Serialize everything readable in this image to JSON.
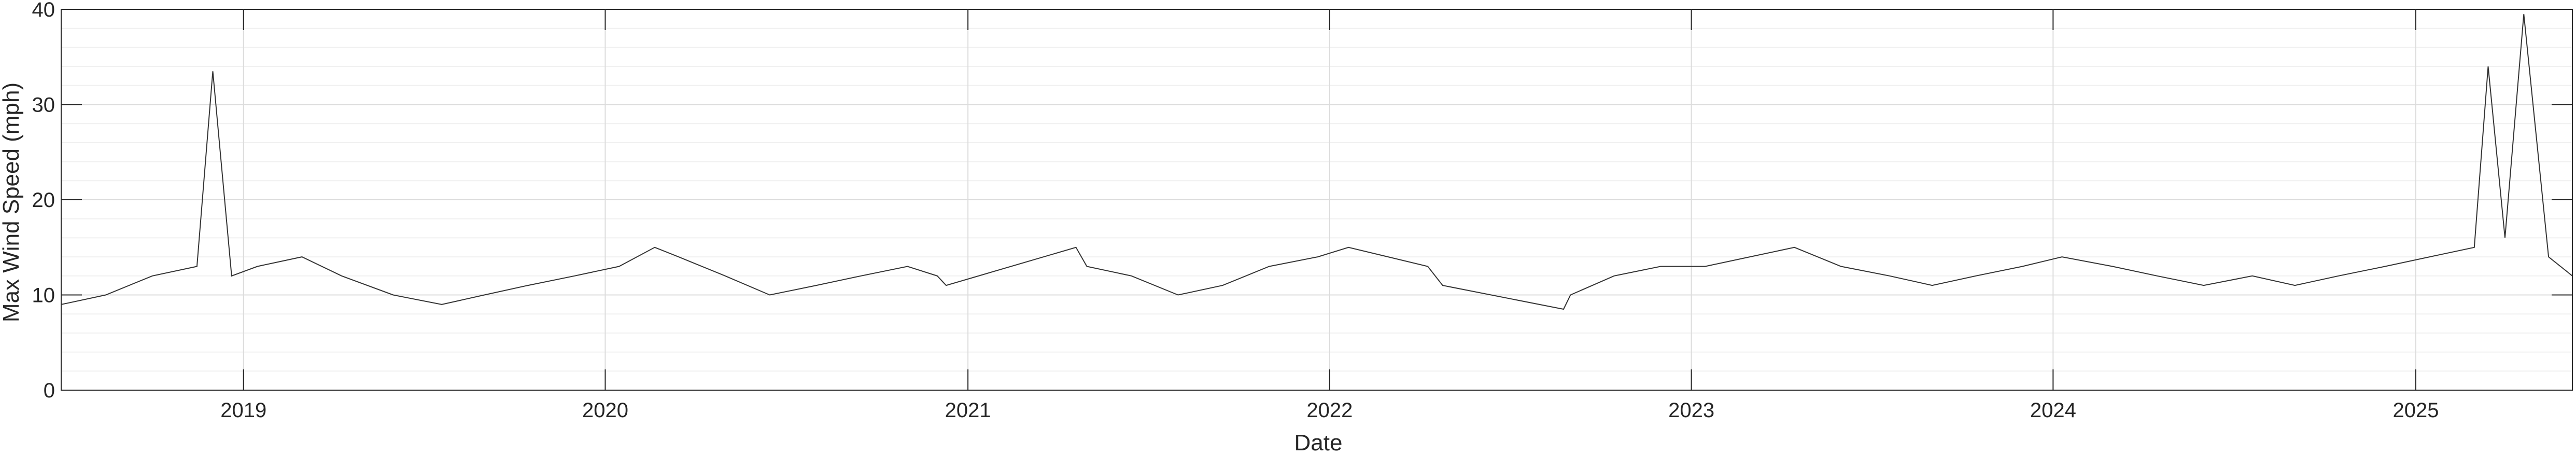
{
  "chart_data": {
    "type": "line",
    "title": "",
    "xlabel": "Date",
    "ylabel": "Max Wind Speed (mph)",
    "xlim": [
      "2018-07-01",
      "2025-06-08"
    ],
    "ylim": [
      0,
      40
    ],
    "yticks": [
      0,
      10,
      20,
      30,
      40
    ],
    "xticks": [
      {
        "date": "2019-01-01",
        "label": "2019"
      },
      {
        "date": "2020-01-01",
        "label": "2020"
      },
      {
        "date": "2021-01-01",
        "label": "2021"
      },
      {
        "date": "2022-01-01",
        "label": "2022"
      },
      {
        "date": "2023-01-01",
        "label": "2023"
      },
      {
        "date": "2024-01-01",
        "label": "2024"
      },
      {
        "date": "2025-01-01",
        "label": "2025"
      }
    ],
    "grid": true,
    "minor_grid": true,
    "line_color": "#333333",
    "series": [
      {
        "x": [
          "2018-07-01",
          "2018-08-15",
          "2018-10-01",
          "2018-11-15",
          "2018-12-01",
          "2018-12-20",
          "2019-01-15",
          "2019-03-01",
          "2019-04-10",
          "2019-06-01",
          "2019-07-20",
          "2019-09-01",
          "2019-10-15",
          "2019-12-01",
          "2020-01-15",
          "2020-02-20",
          "2020-03-15",
          "2020-05-01",
          "2020-06-15",
          "2020-08-01",
          "2020-09-15",
          "2020-11-01",
          "2020-12-01",
          "2020-12-10",
          "2021-04-20",
          "2021-05-01",
          "2021-06-15",
          "2021-08-01",
          "2021-09-15",
          "2021-11-01",
          "2021-12-20",
          "2022-01-20",
          "2022-03-01",
          "2022-04-10",
          "2022-04-25",
          "2022-08-25",
          "2022-09-01",
          "2022-10-15",
          "2022-12-01",
          "2023-01-15",
          "2023-03-01",
          "2023-04-15",
          "2023-06-01",
          "2023-07-20",
          "2023-09-01",
          "2023-10-15",
          "2023-12-01",
          "2024-01-10",
          "2024-03-01",
          "2024-04-15",
          "2024-06-01",
          "2024-07-20",
          "2024-09-01",
          "2024-10-15",
          "2024-12-01",
          "2025-01-15",
          "2025-03-01",
          "2025-03-15",
          "2025-04-01",
          "2025-04-20",
          "2025-05-15",
          "2025-06-08"
        ],
        "y": [
          9,
          10,
          12,
          13,
          33.5,
          12,
          13,
          14,
          12,
          10,
          9,
          10,
          11,
          12,
          13,
          15,
          14,
          12,
          10,
          11,
          12,
          13,
          12,
          11,
          15,
          13,
          12,
          10,
          11,
          13,
          14,
          15,
          14,
          13,
          11,
          8.5,
          10,
          12,
          13,
          13,
          14,
          15,
          13,
          12,
          11,
          12,
          13,
          14,
          13,
          12,
          11,
          12,
          11,
          12,
          13,
          14,
          15,
          34,
          16,
          39.5,
          14,
          12
        ]
      }
    ]
  }
}
